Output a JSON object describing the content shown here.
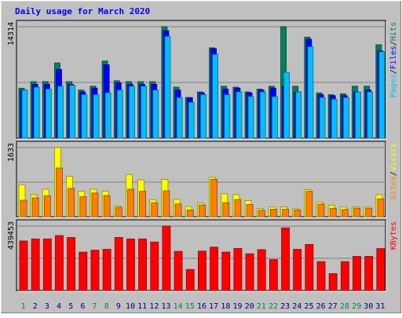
{
  "chart_data": {
    "type": "bar",
    "title": "Daily usage for March 2020",
    "x": [
      "1",
      "2",
      "3",
      "4",
      "5",
      "6",
      "7",
      "8",
      "9",
      "10",
      "11",
      "12",
      "13",
      "14",
      "15",
      "16",
      "17",
      "18",
      "19",
      "20",
      "21",
      "22",
      "23",
      "24",
      "25",
      "26",
      "27",
      "28",
      "29",
      "30",
      "31"
    ],
    "weekend_days": [
      "1",
      "7",
      "8",
      "14",
      "15",
      "21",
      "22",
      "28",
      "29"
    ],
    "panels": [
      {
        "name": "hits-files-pages",
        "ylabel_max": "14314",
        "ylim": [
          0,
          14314
        ],
        "grid": true,
        "series": [
          {
            "name": "Hits",
            "color": "#00805c",
            "values": [
              6420,
              7260,
              7260,
              9660,
              7260,
              6180,
              6670,
              9910,
              7380,
              7260,
              7260,
              7260,
              14314,
              6550,
              5220,
              5940,
              11600,
              6670,
              6550,
              5940,
              6300,
              6670,
              14314,
              6670,
              12980,
              5820,
              5580,
              5700,
              6670,
              6670,
              12000
            ]
          },
          {
            "name": "Files",
            "color": "#0000ff",
            "values": [
              6180,
              6920,
              6920,
              8840,
              6920,
              5940,
              6430,
              9430,
              7120,
              6920,
              6920,
              6920,
              13800,
              6180,
              5220,
              5820,
              11500,
              6300,
              6430,
              5820,
              6180,
              6430,
              6670,
              5940,
              12700,
              5580,
              5460,
              5460,
              5940,
              6180,
              11200
            ]
          },
          {
            "name": "Pages",
            "color": "#00bfff",
            "values": [
              6180,
              6550,
              6300,
              6670,
              6790,
              5580,
              5580,
              5820,
              6180,
              6670,
              6670,
              6180,
              13060,
              5220,
              4600,
              5580,
              10740,
              5580,
              5940,
              5340,
              5940,
              5340,
              8460,
              5940,
              11740,
              5220,
              5000,
              5220,
              5940,
              5940,
              11090
            ]
          }
        ],
        "legend": [
          "Pages",
          "/",
          "Files",
          "/",
          "Hits"
        ]
      },
      {
        "name": "sites-visits",
        "ylabel_max": "1633",
        "ylim": [
          0,
          1633
        ],
        "grid": true,
        "series": [
          {
            "name": "Visits",
            "color": "#ffff00",
            "values": [
              755,
              520,
              650,
              1633,
              955,
              600,
              650,
              600,
              250,
              1000,
              870,
              400,
              880,
              410,
              240,
              320,
              930,
              540,
              520,
              380,
              190,
              230,
              230,
              190,
              640,
              350,
              270,
              230,
              230,
              230,
              520
            ]
          },
          {
            "name": "Sites",
            "color": "#ff8000",
            "values": [
              390,
              445,
              490,
              1150,
              670,
              470,
              560,
              500,
              220,
              650,
              600,
              330,
              610,
              300,
              160,
              275,
              885,
              330,
              405,
              290,
              150,
              175,
              175,
              160,
              600,
              300,
              200,
              170,
              200,
              200,
              420
            ]
          }
        ],
        "legend": [
          "Sites",
          "/",
          "Visits"
        ]
      },
      {
        "name": "kbytes",
        "ylabel_max": "439453",
        "ylim": [
          0,
          439453
        ],
        "grid": true,
        "series": [
          {
            "name": "KBytes",
            "color": "#ff0000",
            "values": [
              338000,
              352000,
              352000,
              375000,
              362000,
              262000,
              275000,
              281000,
              362000,
              352000,
              352000,
              331000,
              439453,
              267000,
              144000,
              269000,
              296000,
              262000,
              287000,
              251000,
              279000,
              211000,
              427000,
              281000,
              314000,
              197000,
              115000,
              197000,
              233000,
              233000,
              286000
            ]
          }
        ],
        "legend": [
          "KBytes"
        ]
      }
    ]
  }
}
